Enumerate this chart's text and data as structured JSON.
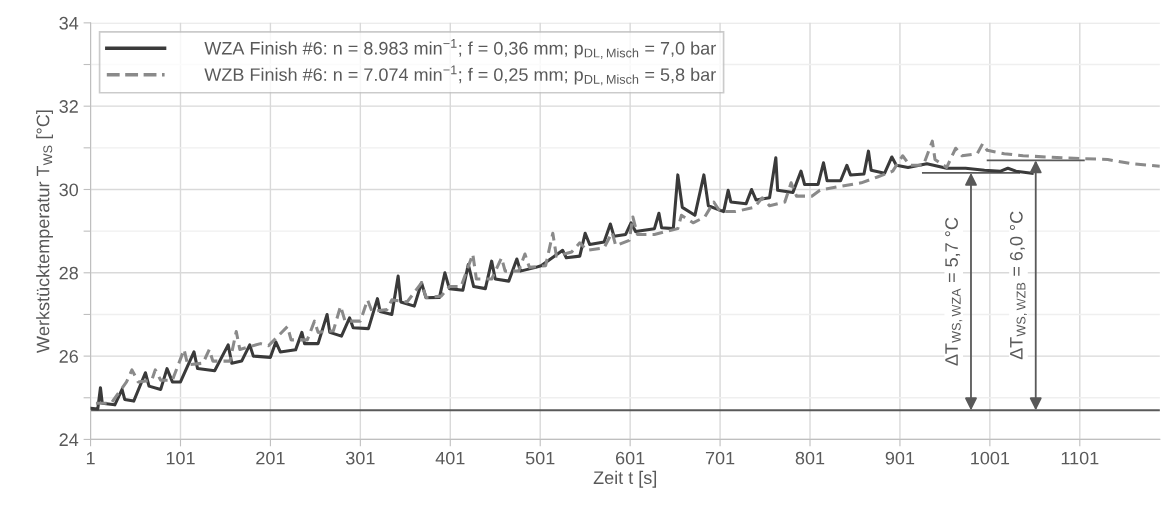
{
  "chart_data": {
    "type": "line",
    "xlabel": "Zeit t [s]",
    "ylabel": "Werkstücktemperatur T$_{WS}$ [°C]",
    "xlim": [
      1,
      1190
    ],
    "xticks": [
      1,
      101,
      201,
      301,
      401,
      501,
      601,
      701,
      801,
      901,
      1001,
      1101
    ],
    "ylim": [
      24,
      34
    ],
    "yticks": [
      24,
      {
        "value": 25,
        "label": null
      },
      26,
      {
        "value": 27,
        "label": null
      },
      28,
      {
        "value": 29,
        "label": null
      },
      30,
      {
        "value": 31,
        "label": null
      },
      32,
      {
        "value": 33,
        "label": null
      },
      34
    ],
    "grid": true,
    "legend": "top left",
    "marker": "none",
    "series": [
      {
        "name": "WZA Finish #6: n = 8.983 min$^{−1}$; f = 0,36 mm; p$_{DL,Misch}$ = 7,0 bar",
        "color": "#3a3a3a",
        "line_style": "solid",
        "x": [
          1,
          9,
          12,
          14,
          28,
          36,
          39,
          49,
          62,
          66,
          79,
          86,
          92,
          101,
          116,
          120,
          139,
          154,
          158,
          169,
          178,
          182,
          201,
          207,
          212,
          229,
          236,
          239,
          254,
          264,
          267,
          280,
          289,
          293,
          310,
          320,
          323,
          336,
          343,
          346,
          361,
          369,
          374,
          389,
          395,
          400,
          415,
          421,
          427,
          440,
          447,
          451,
          466,
          475,
          479,
          496,
          502,
          526,
          530,
          545,
          551,
          556,
          572,
          579,
          583,
          596,
          602,
          607,
          628,
          633,
          636,
          649,
          654,
          659,
          673,
          683,
          688,
          705,
          710,
          713,
          730,
          736,
          741,
          756,
          763,
          765,
          782,
          791,
          795,
          810,
          816,
          820,
          835,
          842,
          846,
          861,
          866,
          869,
          884,
          892,
          897,
          910,
          931,
          953,
          974,
          995,
          1013,
          1021,
          1030,
          1048
        ],
        "values": [
          24.75,
          24.73,
          25.24,
          24.87,
          24.83,
          25.2,
          24.96,
          24.92,
          25.6,
          25.28,
          25.2,
          25.7,
          25.38,
          25.38,
          26.1,
          25.7,
          25.65,
          26.27,
          25.83,
          25.88,
          26.27,
          26.0,
          25.97,
          26.34,
          26.1,
          26.15,
          26.57,
          26.3,
          26.3,
          27.0,
          26.57,
          26.48,
          26.92,
          26.68,
          26.66,
          27.38,
          27.07,
          27.0,
          27.92,
          27.3,
          27.2,
          27.76,
          27.4,
          27.41,
          28.0,
          27.62,
          27.58,
          28.2,
          27.67,
          27.62,
          28.28,
          27.85,
          27.8,
          28.33,
          28.04,
          28.13,
          28.17,
          28.54,
          28.36,
          28.4,
          28.95,
          28.68,
          28.74,
          29.17,
          28.88,
          28.92,
          29.2,
          28.99,
          29.06,
          29.43,
          29.08,
          29.06,
          30.35,
          29.57,
          29.38,
          30.35,
          29.61,
          29.47,
          29.98,
          29.7,
          29.66,
          30.0,
          29.75,
          29.8,
          30.76,
          29.98,
          29.93,
          30.44,
          30.12,
          30.12,
          30.64,
          30.21,
          30.21,
          30.58,
          30.35,
          30.37,
          30.92,
          30.46,
          30.39,
          30.78,
          30.58,
          30.53,
          30.62,
          30.51,
          30.51,
          30.46,
          30.44,
          30.51,
          30.44,
          30.39
        ]
      },
      {
        "name": "WZB Finish #6: n = 7.074 min$^{−1}$; f = 0,25 mm; p$_{DL,Misch}$ = 5,8 bar",
        "color": "#8a8a8a",
        "line_style": "dashed",
        "x": [
          7,
          24,
          41,
          47,
          54,
          69,
          73,
          79,
          92,
          105,
          109,
          126,
          133,
          137,
          156,
          163,
          167,
          190,
          199,
          220,
          224,
          242,
          250,
          254,
          271,
          279,
          284,
          301,
          309,
          314,
          331,
          336,
          353,
          369,
          374,
          391,
          400,
          413,
          426,
          430,
          447,
          458,
          462,
          477,
          484,
          489,
          507,
          515,
          519,
          536,
          545,
          553,
          572,
          581,
          585,
          600,
          604,
          609,
          628,
          654,
          658,
          671,
          684,
          694,
          701,
          718,
          739,
          748,
          756,
          773,
          780,
          786,
          803,
          812,
          833,
          858,
          876,
          893,
          904,
          912,
          927,
          937,
          940,
          953,
          963,
          970,
          987,
          993,
          998,
          1017,
          1038,
          1081,
          1132,
          1158,
          1190
        ],
        "values": [
          24.87,
          24.87,
          25.38,
          25.67,
          25.38,
          25.42,
          25.67,
          25.42,
          25.42,
          26.16,
          25.79,
          25.83,
          26.16,
          25.88,
          25.88,
          26.59,
          26.16,
          26.3,
          26.25,
          26.71,
          26.39,
          26.39,
          26.84,
          26.57,
          26.61,
          27.2,
          26.84,
          26.84,
          27.35,
          27.07,
          27.12,
          27.35,
          27.3,
          27.76,
          27.41,
          27.44,
          27.67,
          27.67,
          28.45,
          27.85,
          27.85,
          28.36,
          28.04,
          28.04,
          28.45,
          28.13,
          28.17,
          28.95,
          28.4,
          28.5,
          28.72,
          28.54,
          28.6,
          28.97,
          28.65,
          28.78,
          29.34,
          28.92,
          28.92,
          29.06,
          29.38,
          29.2,
          29.34,
          29.7,
          29.47,
          29.47,
          29.57,
          29.8,
          29.61,
          29.7,
          30.16,
          29.84,
          29.84,
          29.98,
          30.07,
          30.16,
          30.3,
          30.44,
          30.81,
          30.58,
          30.58,
          31.16,
          30.72,
          30.53,
          30.99,
          30.81,
          30.86,
          31.1,
          30.94,
          30.86,
          30.81,
          30.76,
          30.72,
          30.62,
          30.56
        ]
      }
    ],
    "ref_lines": [
      {
        "axis": "y",
        "value": 24.7,
        "color": "#595959"
      }
    ],
    "annotations": [
      {
        "text": "ΔT$_{WS,WZA}$ = 5,7 °C",
        "x": 980,
        "y": 30.4
      },
      {
        "text": "ΔT$_{WS,WZB}$ = 6,0 °C",
        "x": 1052,
        "y": 30.7
      }
    ]
  }
}
